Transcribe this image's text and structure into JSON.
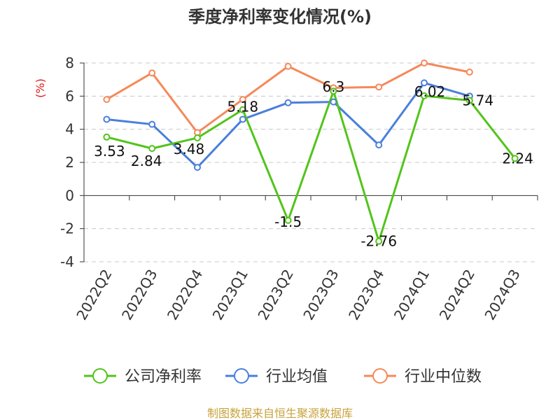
{
  "chart_data": {
    "type": "line",
    "title": "季度净利率变化情况(%)",
    "y_unit": "(%)",
    "ylim": [
      -4,
      8
    ],
    "y_ticks": [
      -4,
      -2,
      0,
      2,
      4,
      6,
      8
    ],
    "grid": true,
    "legend_position": "bottom",
    "categories": [
      "2022Q2",
      "2022Q3",
      "2022Q4",
      "2023Q1",
      "2023Q2",
      "2023Q3",
      "2023Q4",
      "2024Q1",
      "2024Q2",
      "2024Q3"
    ],
    "series": [
      {
        "name": "公司净利率",
        "color": "#52c41a",
        "values": [
          3.53,
          2.84,
          3.48,
          5.18,
          -1.5,
          6.3,
          -2.76,
          6.02,
          5.74,
          2.24
        ],
        "labels": [
          "3.53",
          "2.84",
          "3.48",
          "5.18",
          "-1.5",
          "6.3",
          "-2.76",
          "6.02",
          "5.74",
          "2.24"
        ]
      },
      {
        "name": "行业均值",
        "color": "#4a7fdc",
        "values": [
          4.6,
          4.3,
          1.7,
          4.6,
          5.6,
          5.65,
          3.05,
          6.8,
          6.0,
          null
        ]
      },
      {
        "name": "行业中位数",
        "color": "#f5895a",
        "values": [
          5.8,
          7.4,
          3.8,
          5.8,
          7.8,
          6.5,
          6.55,
          8.0,
          7.45,
          null
        ]
      }
    ]
  },
  "footer": {
    "source": "制图数据来自恒生聚源数据库"
  }
}
